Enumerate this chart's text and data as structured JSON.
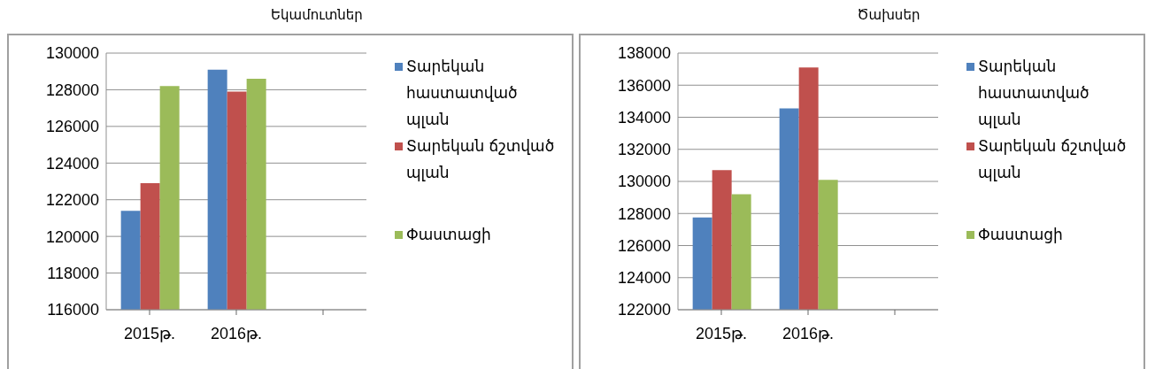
{
  "chart_data": [
    {
      "type": "bar",
      "title": "Եկամուտներ",
      "categories": [
        "2015թ.",
        "2016թ.",
        null
      ],
      "ylim": [
        116000,
        130000
      ],
      "yticks": [
        116000,
        118000,
        120000,
        122000,
        124000,
        126000,
        128000,
        130000
      ],
      "grid": "y",
      "legend": "right",
      "series": [
        {
          "name": "Տարեկան հաստատված պլան",
          "color": "#4f81bd",
          "values": [
            121400,
            129100,
            null
          ]
        },
        {
          "name": "Տարեկան ճշտված պլան",
          "color": "#c0504d",
          "values": [
            122900,
            127900,
            null
          ]
        },
        {
          "name": "Փաստացի",
          "color": "#9bbb59",
          "values": [
            128200,
            128600,
            null
          ]
        }
      ]
    },
    {
      "type": "bar",
      "title": "Ծախսեր",
      "categories": [
        "2015թ.",
        "2016թ.",
        null
      ],
      "ylim": [
        122000,
        138000
      ],
      "yticks": [
        122000,
        124000,
        126000,
        128000,
        130000,
        132000,
        134000,
        136000,
        138000
      ],
      "grid": "y",
      "legend": "right",
      "series": [
        {
          "name": "Տարեկան հաստատված պլան",
          "color": "#4f81bd",
          "values": [
            127750,
            134550,
            null
          ]
        },
        {
          "name": "Տարեկան ճշտված պլան",
          "color": "#c0504d",
          "values": [
            130700,
            137100,
            null
          ]
        },
        {
          "name": "Փաստացի",
          "color": "#9bbb59",
          "values": [
            129200,
            130100,
            null
          ]
        }
      ]
    }
  ]
}
